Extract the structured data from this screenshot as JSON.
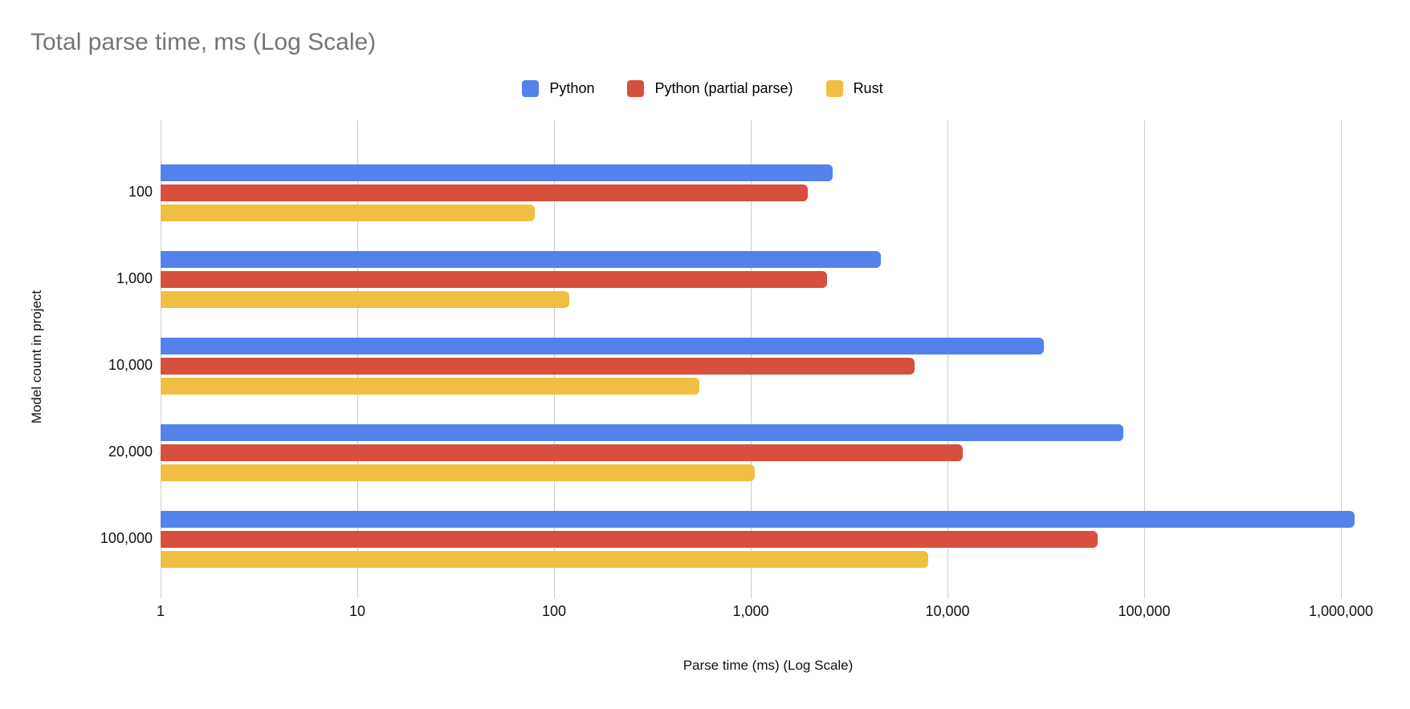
{
  "chart_data": {
    "type": "bar",
    "orientation": "horizontal",
    "title": "Total parse time, ms (Log Scale)",
    "xlabel": "Parse time (ms) (Log Scale)",
    "ylabel": "Model count in project",
    "x_scale": "log",
    "xlim": [
      1,
      1000000
    ],
    "grid": true,
    "legend_position": "top",
    "x_tick_labels": [
      "1",
      "10",
      "100",
      "1,000",
      "10,000",
      "100,000",
      "1,000,000"
    ],
    "x_tick_values": [
      1,
      10,
      100,
      1000,
      10000,
      100000,
      1000000
    ],
    "categories": [
      "100",
      "1,000",
      "10,000",
      "20,000",
      "100,000"
    ],
    "series": [
      {
        "name": "Python",
        "color": "#5382EA",
        "values": [
          2600,
          4600,
          31000,
          78000,
          1170000
        ]
      },
      {
        "name": "Python (partial parse)",
        "color": "#D6503D",
        "values": [
          1950,
          2450,
          6800,
          12000,
          58000
        ]
      },
      {
        "name": "Rust",
        "color": "#F0BF42",
        "values": [
          80,
          120,
          550,
          1050,
          8000
        ]
      }
    ]
  },
  "colors": {
    "title_text": "#757575",
    "axis_text": "#111111",
    "gridline": "#cccccc",
    "background": "#ffffff"
  }
}
